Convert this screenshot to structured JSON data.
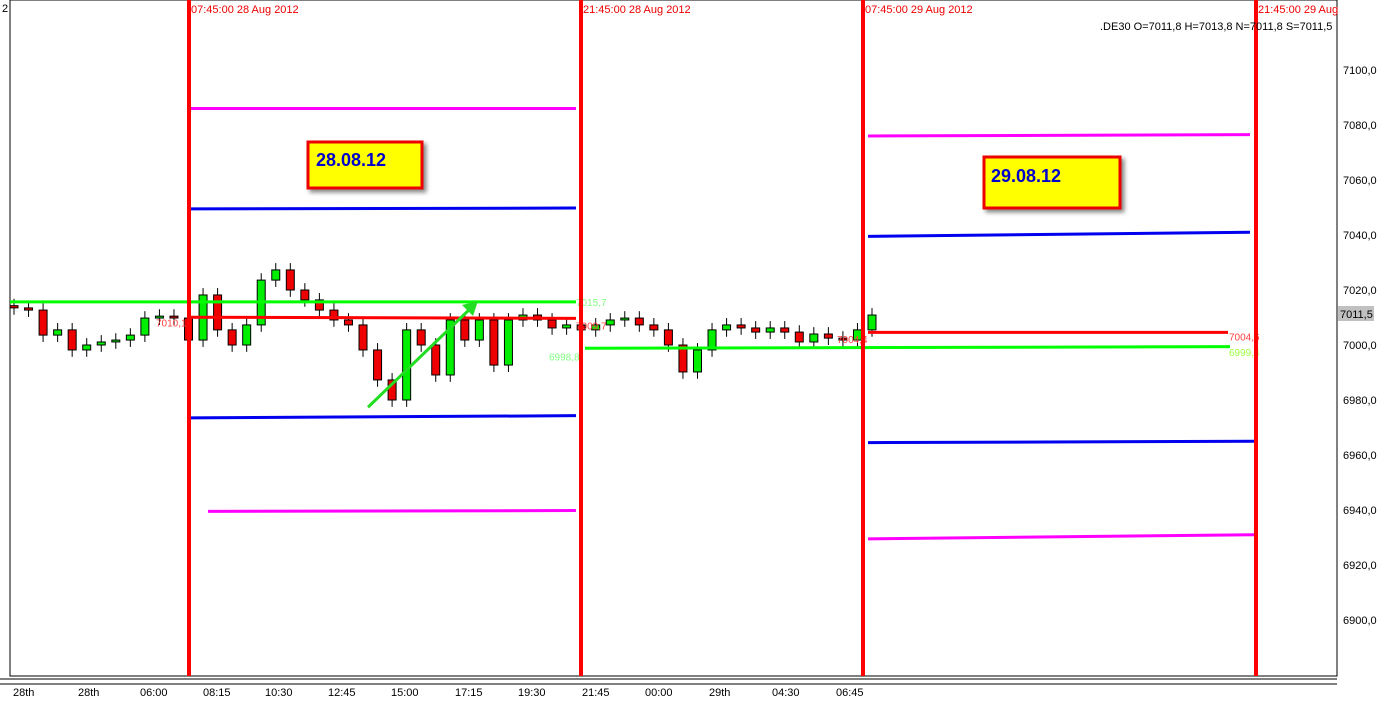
{
  "corner_label": "2",
  "instrument_readout": ".DE30 O=7011,8 H=7013,8 N=7011,8 S=7011,5",
  "session_markers": [
    "07:45:00 28 Aug 2012",
    "21:45:00 28 Aug 2012",
    "07:45:00 29 Aug 2012",
    "21:45:00 29 Aug"
  ],
  "boxes": [
    "28.08.12",
    "29.08.12"
  ],
  "last_price": "7011,5",
  "colors": {
    "up": "#00ee00",
    "down": "#ee0000",
    "session": "#ff0000",
    "magenta": "#ff00ff",
    "blue": "#0000ee",
    "green": "#00ff00",
    "red": "#ff0000",
    "box_fill": "#ffff00"
  },
  "chart_data": {
    "type": "candlestick",
    "title": "",
    "ylim": [
      6880,
      7120
    ],
    "yticks": [
      "6900,0",
      "6920,0",
      "6940,0",
      "6960,0",
      "6980,0",
      "7000,0",
      "7020,0",
      "7040,0",
      "7060,0",
      "7080,0",
      "7100,0"
    ],
    "ytick_values": [
      6900,
      6920,
      6940,
      6960,
      6980,
      7000,
      7020,
      7040,
      7060,
      7080,
      7100
    ],
    "xticks": [
      "28th",
      "28th",
      "06:00",
      "08:15",
      "10:30",
      "12:45",
      "15:00",
      "17:15",
      "19:30",
      "21:45",
      "00:00",
      "29th",
      "04:30",
      "06:45"
    ],
    "close": [
      7013.5,
      7012.7,
      7003.6,
      7005.5,
      6998.2,
      7000.0,
      7001.1,
      7001.8,
      7003.6,
      7009.8,
      7010.5,
      7009.8,
      7001.8,
      7018.2,
      7005.5,
      7000.0,
      7007.3,
      7023.6,
      7027.3,
      7020.0,
      7016.4,
      7012.7,
      7009.1,
      7007.3,
      6998.2,
      6987.3,
      6980.0,
      7005.5,
      7000.0,
      6989.1,
      7009.1,
      7001.8,
      7009.1,
      6992.7,
      7009.1,
      7010.9,
      7009.1,
      7006.2,
      7007.3,
      7005.5,
      7007.3,
      7009.1,
      7009.8,
      7007.3,
      7005.5,
      7000.0,
      6990.2,
      6998.2,
      7005.5,
      7007.3,
      7006.2,
      7004.7,
      7006.2,
      7004.7,
      7001.1,
      7004.0,
      7002.5,
      7001.8,
      7005.5,
      7010.9
    ],
    "levels_28aug": {
      "magenta_high": 7086,
      "blue_high": 7049.5,
      "green": 7015.7,
      "red": 7010.1,
      "blue_low": 6973.5,
      "magenta_low": 6939.5
    },
    "level_labels": {
      "green_28": "7015,7",
      "red_28_left": "7010,1",
      "red_28_right": "7009,7",
      "green_night": "6998,8",
      "red_night": "7004,4",
      "red_29": "7004,6",
      "green_29": "6999,4"
    },
    "levels_29aug": {
      "magenta_high": 7076,
      "blue_high": 7039.5,
      "red": 7004.6,
      "green": 6999.4,
      "green_night": 6998.8,
      "blue_low": 6964.5,
      "magenta_low": 6929.5
    },
    "arrow": {
      "from": 6981,
      "to": 7016
    }
  }
}
